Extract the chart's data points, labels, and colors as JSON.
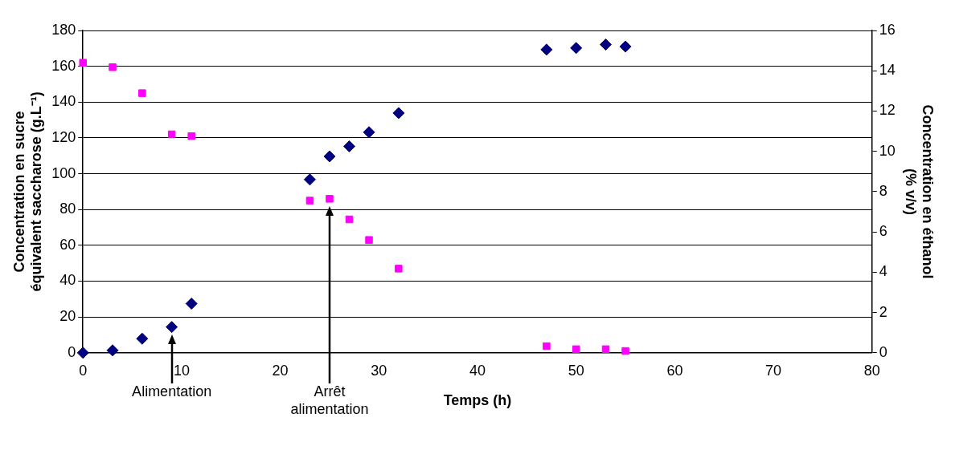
{
  "chart_data": {
    "type": "scatter",
    "xlabel": "Temps (h)",
    "ylabel": "Concentration en sucre\néquivalent saccharose (g.L⁻¹)",
    "y2label": "Concentration en éthanol\n(% v/v)",
    "series": [
      {
        "color": "#ff00ff",
        "marker": "square",
        "x": [
          0,
          3,
          6,
          9,
          11,
          23,
          25,
          27,
          29,
          32,
          47,
          50,
          53,
          55
        ],
        "values": [
          162,
          159.5,
          145,
          122,
          121,
          85,
          86,
          74.5,
          63,
          47,
          3.7,
          2,
          2,
          1
        ]
      },
      {
        "color": "#000080",
        "marker": "diamond",
        "axis": "y2",
        "x": [
          0,
          3,
          6,
          9,
          11,
          23,
          25,
          27,
          29,
          32,
          47,
          50,
          53,
          55
        ],
        "values": [
          0,
          0.12,
          0.7,
          1.28,
          2.44,
          8.6,
          9.75,
          10.25,
          10.95,
          11.9,
          15.05,
          15.13,
          15.3,
          15.2
        ]
      }
    ],
    "xlim": [
      0,
      80
    ],
    "xticks": [
      0,
      10,
      20,
      30,
      40,
      50,
      60,
      70,
      80
    ],
    "ylim": [
      0,
      180
    ],
    "yticks": [
      0,
      20,
      40,
      60,
      80,
      100,
      120,
      140,
      160,
      180
    ],
    "y2lim": [
      0,
      16
    ],
    "y2ticks": [
      0,
      2,
      4,
      6,
      8,
      10,
      12,
      14,
      16
    ],
    "grid": "y",
    "legend": false,
    "annotations": [
      {
        "text": "Alimentation",
        "x": 9
      },
      {
        "text": "Arrêt\nalimentation",
        "x": 25
      }
    ]
  }
}
